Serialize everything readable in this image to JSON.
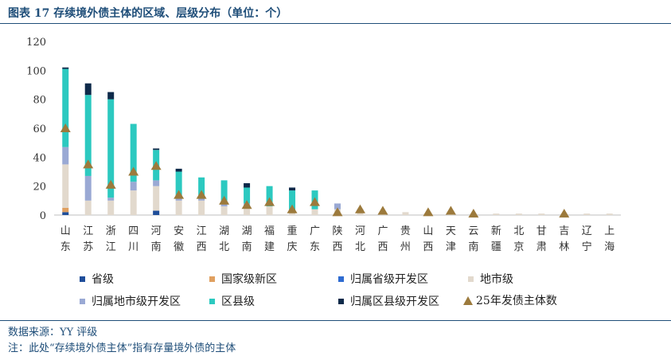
{
  "title": "图表 17 存续境外债主体的区域、层级分布（单位：个）",
  "source": "数据来源：YY 评级",
  "note": "注：此处“存续境外债主体”指有存量境外债的主体",
  "colors": {
    "省级": "#1f4e9a",
    "国家级新区": "#e0a060",
    "归属省级开发区": "#2e6bd1",
    "地市级": "#e2d9cd",
    "归属地市级开发区": "#9aa9d4",
    "区县级": "#2cc9c0",
    "归属区县级开发区": "#0e2a4a",
    "triangle": "#9c7a3c"
  },
  "chart_data": {
    "type": "bar",
    "stacked": true,
    "ylim": [
      0,
      120
    ],
    "yticks": [
      0,
      20,
      40,
      60,
      80,
      100,
      120
    ],
    "grid": false,
    "legend_position": "bottom",
    "categories": [
      "山东",
      "江苏",
      "浙江",
      "四川",
      "河南",
      "安徽",
      "江西",
      "湖北",
      "湖南",
      "福建",
      "重庆",
      "广东",
      "陕西",
      "河北",
      "广西",
      "贵州",
      "山西",
      "天津",
      "云南",
      "新疆",
      "北京",
      "甘肃",
      "吉林",
      "辽宁",
      "上海"
    ],
    "series": [
      {
        "name": "省级",
        "values": [
          2,
          0,
          0,
          0,
          3,
          0,
          0,
          0,
          0,
          0,
          0,
          0,
          0,
          0,
          0,
          0,
          0,
          0,
          0,
          0,
          0,
          0,
          0,
          0,
          0
        ]
      },
      {
        "name": "国家级新区",
        "values": [
          3,
          0,
          0,
          0,
          0,
          0,
          0,
          0,
          0,
          0,
          0,
          0,
          0,
          0,
          0,
          0,
          0,
          0,
          0,
          0,
          0,
          0,
          0,
          0,
          0
        ]
      },
      {
        "name": "归属省级开发区",
        "values": [
          0,
          0,
          0,
          0,
          0,
          0,
          0,
          0,
          0,
          0,
          0,
          0,
          0,
          0,
          0,
          0,
          0,
          0,
          0,
          0,
          0,
          0,
          0,
          0,
          0
        ]
      },
      {
        "name": "地市级",
        "values": [
          30,
          10,
          10,
          17,
          17,
          10,
          10,
          6,
          6,
          6,
          3,
          4,
          4,
          2,
          2,
          2,
          1,
          1,
          0,
          1,
          1,
          1,
          1,
          1,
          1
        ]
      },
      {
        "name": "归属地市级开发区",
        "values": [
          12,
          17,
          2,
          6,
          4,
          2,
          2,
          4,
          2,
          0,
          0,
          0,
          4,
          2,
          0,
          0,
          0,
          0,
          0,
          0,
          0,
          0,
          0,
          0,
          0
        ]
      },
      {
        "name": "区县级",
        "values": [
          54,
          56,
          68,
          40,
          21,
          18,
          14,
          14,
          11,
          14,
          14,
          13,
          0,
          0,
          0,
          0,
          0,
          0,
          0,
          0,
          0,
          0,
          0,
          0,
          0
        ]
      },
      {
        "name": "归属区县级开发区",
        "values": [
          1,
          8,
          5,
          0,
          1,
          2,
          0,
          0,
          3,
          0,
          2,
          0,
          0,
          0,
          0,
          0,
          0,
          0,
          0,
          0,
          0,
          0,
          0,
          0,
          0
        ]
      }
    ],
    "marker_series": {
      "name": "25年发债主体数",
      "values": [
        60,
        35,
        21,
        30,
        34,
        14,
        14,
        10,
        7,
        9,
        4,
        9,
        2,
        4,
        3,
        null,
        2,
        3,
        1,
        null,
        null,
        null,
        1,
        null,
        null
      ]
    }
  }
}
